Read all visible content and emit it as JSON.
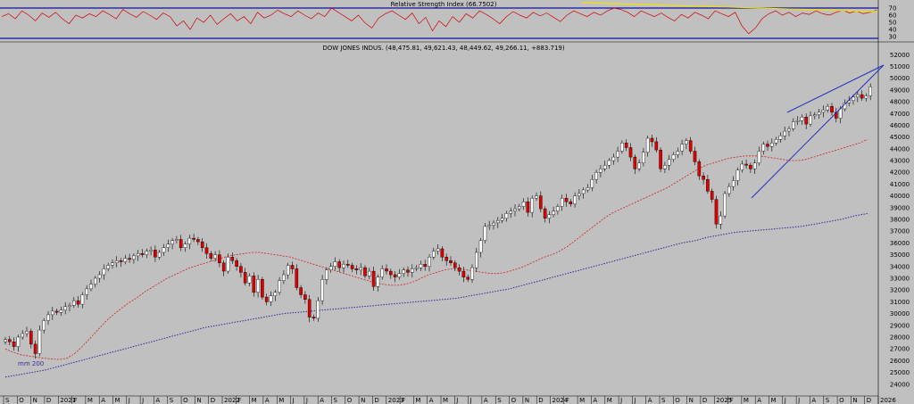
{
  "rsi_panel": {
    "title": "Relative Strength Index (66.7502)",
    "ticks": [
      "70",
      "60",
      "50",
      "40",
      "30"
    ]
  },
  "main_panel": {
    "title": "DOW JONES INDUS. (48,475.81, 49,621.43, 48,449.62, 49,266.11, +883.719)",
    "ma_label": "mm 200"
  },
  "x_axis_labels": [
    "S",
    "O",
    "N",
    "D",
    "2021",
    "F",
    "M",
    "A",
    "M",
    "J",
    "J",
    "A",
    "S",
    "O",
    "N",
    "D",
    "2022",
    "F",
    "M",
    "A",
    "M",
    "J",
    "J",
    "A",
    "S",
    "O",
    "N",
    "D",
    "2023",
    "F",
    "M",
    "A",
    "M",
    "J",
    "J",
    "A",
    "S",
    "O",
    "N",
    "D",
    "2024",
    "F",
    "M",
    "A",
    "M",
    "J",
    "J",
    "A",
    "S",
    "O",
    "N",
    "D",
    "2025",
    "F",
    "M",
    "A",
    "M",
    "J",
    "J",
    "A",
    "S",
    "O",
    "N",
    "D",
    "2026"
  ],
  "colors": {
    "background": "#c0c0c0",
    "up_candle": "#ffffff",
    "down_candle": "#e00000",
    "rsi_line": "#d00000",
    "ma_short": "#d02020",
    "ma_200": "#2a2a9a",
    "trendline": "#2030c0",
    "rsi_trend": "#f0e000",
    "panel_border": "#1010a0"
  },
  "chart_data": [
    {
      "type": "line",
      "title": "Relative Strength Index (66.7502)",
      "ylim": [
        25,
        75
      ],
      "y_ticks": [
        30,
        40,
        50,
        60,
        70
      ],
      "series": [
        {
          "values": [
            58,
            62,
            55,
            66,
            60,
            52,
            63,
            57,
            64,
            55,
            48,
            60,
            56,
            62,
            58,
            66,
            61,
            55,
            68,
            62,
            57,
            65,
            60,
            54,
            63,
            58,
            45,
            52,
            40,
            56,
            50,
            60,
            47,
            55,
            62,
            52,
            58,
            48,
            64,
            56,
            60,
            67,
            62,
            58,
            66,
            60,
            55,
            63,
            58,
            70,
            64,
            58,
            52,
            60,
            49,
            42,
            56,
            62,
            66,
            60,
            54,
            63,
            48,
            57,
            38,
            52,
            44,
            58,
            50,
            62,
            56,
            66,
            61,
            55,
            48,
            58,
            65,
            60,
            56,
            64,
            59,
            63,
            57,
            51,
            60,
            66,
            62,
            58,
            64,
            60,
            66,
            70,
            68,
            64,
            58,
            66,
            62,
            58,
            63,
            57,
            52,
            61,
            56,
            64,
            60,
            55,
            66,
            62,
            58,
            64,
            45,
            34,
            42,
            55,
            62,
            66,
            60,
            64,
            58,
            63,
            61,
            66,
            62,
            60,
            64,
            67,
            63,
            66,
            62,
            64,
            67
          ]
        }
      ]
    },
    {
      "type": "candlestick",
      "title": "DOW JONES INDUS. (48,475.81, 49,621.43, 48,449.62, 49,266.11, +883.719)",
      "ylim": [
        23300,
        52400
      ],
      "y_ticks": [
        24000,
        25000,
        26000,
        27000,
        28000,
        29000,
        30000,
        31000,
        32000,
        33000,
        34000,
        35000,
        36000,
        37000,
        38000,
        39000,
        40000,
        41000,
        42000,
        43000,
        44000,
        45000,
        46000,
        47000,
        48000,
        49000,
        50000,
        51000,
        52000
      ],
      "x_range": [
        "2020-09",
        "2026-01"
      ],
      "series": [
        {
          "name": "Dow Jones Industrial Average",
          "close": [
            27800,
            27600,
            27200,
            28000,
            28300,
            28500,
            27400,
            26600,
            28600,
            29400,
            29900,
            30200,
            30100,
            30300,
            30600,
            30700,
            31100,
            30800,
            31600,
            32100,
            32500,
            33000,
            33300,
            33800,
            34100,
            34300,
            34500,
            34400,
            34700,
            34600,
            34900,
            35100,
            35000,
            35300,
            35400,
            34800,
            35200,
            35600,
            35900,
            36200,
            36300,
            35600,
            35900,
            36400,
            36300,
            36100,
            35600,
            35100,
            34700,
            35000,
            34300,
            33600,
            34800,
            34500,
            34000,
            33500,
            32600,
            33200,
            31800,
            32900,
            31400,
            31000,
            31500,
            31800,
            32800,
            33300,
            34100,
            33800,
            32200,
            31600,
            31200,
            29700,
            29600,
            31100,
            32900,
            33700,
            34000,
            34400,
            33900,
            34200,
            34100,
            33800,
            33700,
            33900,
            33200,
            33600,
            32300,
            33100,
            33800,
            33600,
            33300,
            33100,
            33400,
            33700,
            33500,
            33800,
            33900,
            34200,
            34000,
            34800,
            35300,
            35500,
            34800,
            34500,
            34300,
            33900,
            33600,
            33100,
            32900,
            33900,
            35200,
            36200,
            37400,
            37500,
            37700,
            37900,
            38100,
            38500,
            38700,
            38900,
            39100,
            39500,
            38600,
            39800,
            40000,
            38900,
            38100,
            38400,
            38700,
            39100,
            39800,
            39500,
            39300,
            40000,
            40200,
            40500,
            40700,
            41400,
            42000,
            42300,
            42600,
            43000,
            43300,
            43800,
            44500,
            44100,
            43300,
            42300,
            42800,
            43700,
            44900,
            44600,
            43900,
            42300,
            42600,
            43100,
            43500,
            43800,
            44400,
            44700,
            43800,
            42900,
            41700,
            41400,
            40400,
            39700,
            37600,
            38300,
            40200,
            40800,
            41300,
            42200,
            42700,
            42600,
            42300,
            42800,
            43800,
            44400,
            44200,
            44500,
            44800,
            45100,
            45500,
            45700,
            46300,
            46400,
            46700,
            46100,
            46800,
            46900,
            47100,
            47300,
            47600,
            47100,
            46600,
            47400,
            47900,
            48100,
            48400,
            48600,
            48300,
            48500,
            49266
          ]
        },
        {
          "name": "",
          "note": "short moving average (dotted red)",
          "values": [
            27000,
            26700,
            26500,
            26400,
            26300,
            26200,
            26150,
            26100,
            26200,
            26600,
            27200,
            27900,
            28600,
            29300,
            29900,
            30400,
            30900,
            31300,
            31800,
            32200,
            32600,
            33000,
            33300,
            33600,
            33900,
            34100,
            34300,
            34500,
            34700,
            34900,
            35000,
            35100,
            35200,
            35200,
            35100,
            35000,
            34900,
            34800,
            34600,
            34400,
            34200,
            34000,
            33800,
            33600,
            33400,
            33200,
            33000,
            32800,
            32600,
            32500,
            32400,
            32400,
            32500,
            32700,
            33000,
            33300,
            33500,
            33700,
            33800,
            33800,
            33700,
            33600,
            33500,
            33400,
            33400,
            33500,
            33700,
            33900,
            34200,
            34500,
            34800,
            35000,
            35300,
            35700,
            36200,
            36700,
            37200,
            37700,
            38200,
            38600,
            38900,
            39200,
            39500,
            39800,
            40100,
            40400,
            40700,
            41100,
            41500,
            41900,
            42300,
            42600,
            42800,
            43000,
            43200,
            43300,
            43400,
            43400,
            43400,
            43300,
            43200,
            43100,
            43000,
            43000,
            43100,
            43300,
            43500,
            43700,
            43900,
            44100,
            44300,
            44500,
            44800
          ]
        },
        {
          "name": "mm 200",
          "values": [
            24600,
            24800,
            25000,
            25200,
            25500,
            25800,
            26100,
            26400,
            26700,
            27000,
            27300,
            27600,
            27900,
            28200,
            28500,
            28800,
            29000,
            29200,
            29400,
            29600,
            29800,
            30000,
            30100,
            30200,
            30300,
            30400,
            30500,
            30600,
            30700,
            30800,
            30900,
            31000,
            31100,
            31200,
            31300,
            31500,
            31700,
            31900,
            32100,
            32400,
            32700,
            33000,
            33300,
            33600,
            33900,
            34200,
            34500,
            34800,
            35100,
            35400,
            35700,
            36000,
            36200,
            36500,
            36700,
            36900,
            37000,
            37100,
            37200,
            37300,
            37400,
            37600,
            37800,
            38000,
            38300,
            38500
          ]
        }
      ]
    }
  ]
}
